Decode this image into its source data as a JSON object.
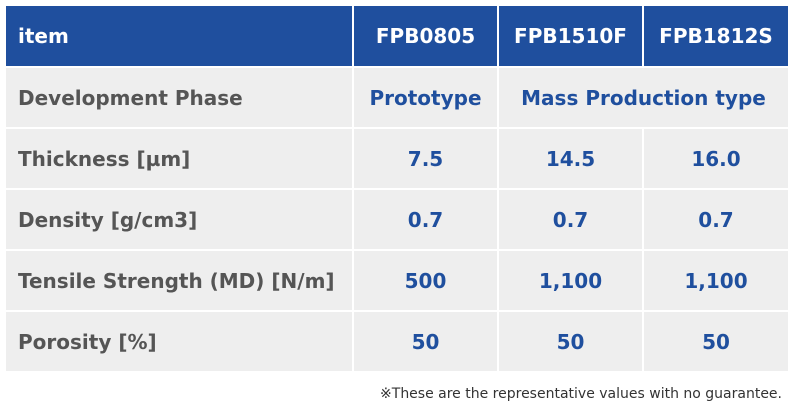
{
  "table": {
    "headers": [
      "item",
      "FPB0805",
      "FPB1510F",
      "FPB1812S"
    ],
    "rows": {
      "phase": {
        "label": "Development Phase",
        "prototype": "Prototype",
        "mass_production": "Mass Production type"
      },
      "thickness": {
        "label": "Thickness [µm]",
        "values": [
          "7.5",
          "14.5",
          "16.0"
        ]
      },
      "density": {
        "label": "Density [g/cm3]",
        "values": [
          "0.7",
          "0.7",
          "0.7"
        ]
      },
      "tensile": {
        "label": "Tensile Strength (MD) [N/m]",
        "values": [
          "500",
          "1,100",
          "1,100"
        ]
      },
      "porosity": {
        "label": "Porosity [%]",
        "values": [
          "50",
          "50",
          "50"
        ]
      }
    }
  },
  "footnote": "※These are the representative values with no guarantee.",
  "colors": {
    "header_bg": "#1f4f9e",
    "header_text": "#ffffff",
    "cell_bg": "#eeeeee",
    "value_text": "#1f4f9e",
    "label_text": "#555555"
  }
}
